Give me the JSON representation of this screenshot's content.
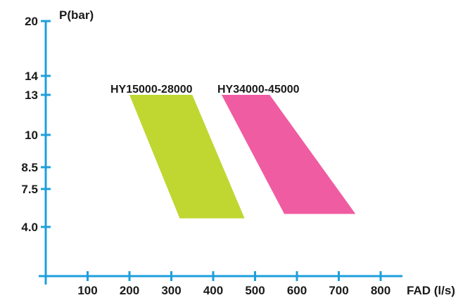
{
  "chart_data": {
    "type": "area",
    "xlabel": "FAD (l/s)",
    "ylabel": "P(bar)",
    "x_ticks": [
      100,
      200,
      300,
      400,
      500,
      600,
      700,
      800
    ],
    "y_ticks": [
      "4.0",
      "7.5",
      "8.5",
      "10",
      "13",
      "14",
      "20"
    ],
    "xlim": [
      0,
      850
    ],
    "series": [
      {
        "name": "HY15000-28000",
        "color": "#bfd730",
        "points": [
          [
            200,
            13
          ],
          [
            350,
            13
          ],
          [
            475,
            4.8
          ],
          [
            320,
            4.8
          ]
        ]
      },
      {
        "name": "HY34000-45000",
        "color": "#ef5ca1",
        "points": [
          [
            420,
            13
          ],
          [
            535,
            13
          ],
          [
            740,
            5.2
          ],
          [
            570,
            5.2
          ]
        ]
      }
    ]
  },
  "axis_color": "#1e9fdc"
}
